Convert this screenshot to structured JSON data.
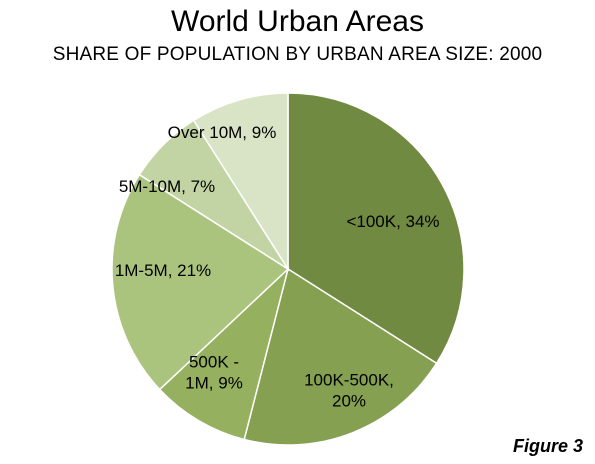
{
  "chart_data": {
    "type": "pie",
    "title": "World Urban Areas",
    "subtitle": "SHARE OF POPULATION BY URBAN AREA SIZE: 2000",
    "slices": [
      {
        "label_lines": [
          "<100K, 34%"
        ],
        "category": "<100K",
        "value": 34,
        "color": "#718a42"
      },
      {
        "label_lines": [
          "100K-500K,",
          "20%"
        ],
        "category": "100K-500K",
        "value": 20,
        "color": "#84a050"
      },
      {
        "label_lines": [
          "500K -",
          "1M, 9%"
        ],
        "category": "500K - 1M",
        "value": 9,
        "color": "#95b05e"
      },
      {
        "label_lines": [
          "1M-5M, 21%"
        ],
        "category": "1M-5M",
        "value": 21,
        "color": "#abc47d"
      },
      {
        "label_lines": [
          "5M-10M, 7%"
        ],
        "category": "5M-10M",
        "value": 7,
        "color": "#c2d4a3"
      },
      {
        "label_lines": [
          "Over 10M, 9%"
        ],
        "category": "Over 10M",
        "value": 9,
        "color": "#d9e4c7"
      }
    ]
  },
  "figure_label": "Figure 3"
}
